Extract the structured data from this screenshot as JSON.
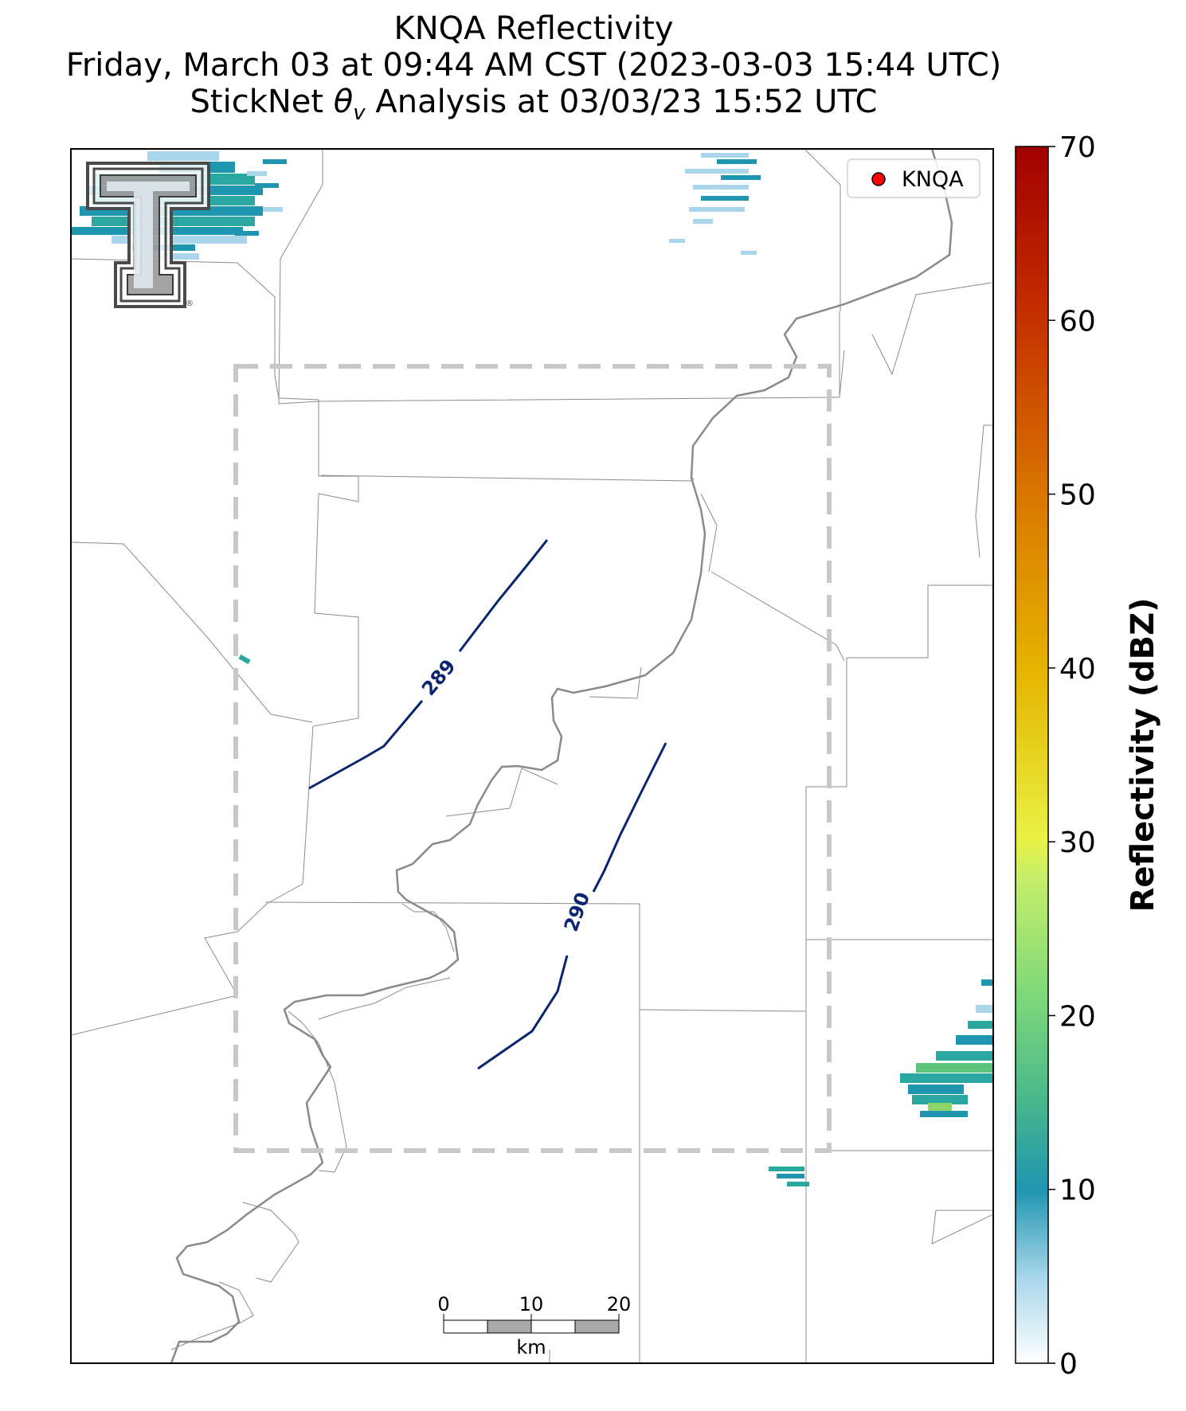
{
  "title": {
    "line1": "KNQA Reflectivity",
    "line2": "Friday, March 03 at 09:44 AM CST (2023-03-03 15:44 UTC)",
    "line3_prefix": "StickNet ",
    "line3_theta": "θ",
    "line3_sub": "v",
    "line3_suffix": " Analysis at 03/03/23 15:52 UTC"
  },
  "legend": {
    "label": "KNQA",
    "marker_color": "#ff0000"
  },
  "colorbar": {
    "label": "Reflectivity (dBZ)",
    "ticks": [
      "0",
      "10",
      "20",
      "30",
      "40",
      "50",
      "60",
      "70"
    ],
    "range": [
      0,
      70
    ],
    "colors": [
      "#ffffff",
      "#1f95b0",
      "#7dd87a",
      "#e8f244",
      "#e5b400",
      "#d97800",
      "#c43000",
      "#a00000"
    ]
  },
  "contours": {
    "color": "#0a2670",
    "labels": [
      "289",
      "290"
    ]
  },
  "scalebar": {
    "ticks": [
      "0",
      "10",
      "20"
    ],
    "unit": "km"
  },
  "analysis_box": {
    "color": "#c8c8c8"
  },
  "logo": {
    "name": "Texas Tech Double T",
    "mark": "®"
  },
  "reflectivity_colors": {
    "light": "#a9d6ea",
    "mid": "#1f95b0",
    "teal": "#2aa8a0",
    "green": "#5cc47a",
    "lightgreen": "#8fd66a"
  }
}
